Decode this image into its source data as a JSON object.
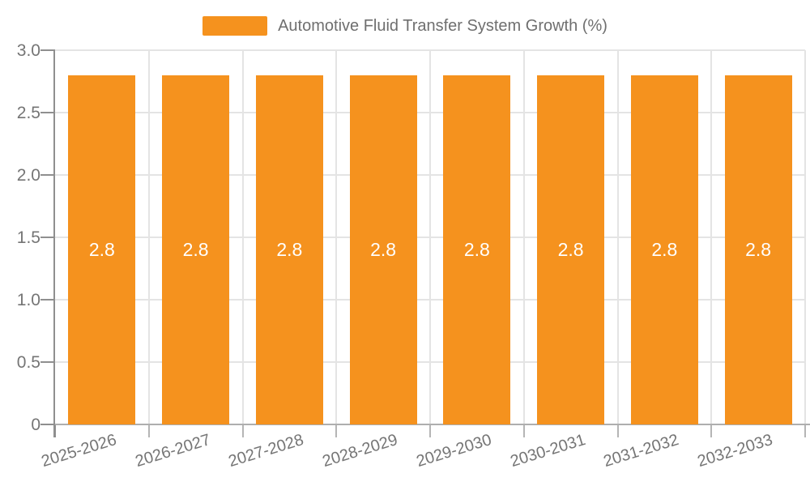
{
  "legend": {
    "label": "Automotive Fluid Transfer System Growth (%)"
  },
  "colors": {
    "bar": "#F5921E",
    "bar_label": "#FFFFFF",
    "axis_text": "#757575",
    "legend_text": "#6F6F6F",
    "grid_line": "#E4E4E4",
    "axis_line": "#8F8F8F",
    "x_axis_line": "#AEAEAE",
    "x_tick": "#B5B5B5"
  },
  "chart_data": {
    "type": "bar",
    "title": "Automotive Fluid Transfer System Growth (%)",
    "categories": [
      "2025-2026",
      "2026-2027",
      "2027-2028",
      "2028-2029",
      "2029-2030",
      "2030-2031",
      "2031-2032",
      "2032-2033"
    ],
    "values": [
      2.8,
      2.8,
      2.8,
      2.8,
      2.8,
      2.8,
      2.8,
      2.8
    ],
    "bar_labels": [
      "2.8",
      "2.8",
      "2.8",
      "2.8",
      "2.8",
      "2.8",
      "2.8",
      "2.8"
    ],
    "xlabel": "",
    "ylabel": "",
    "ylim": [
      0,
      3.0
    ],
    "yticks": [
      {
        "value": 0,
        "label": "0"
      },
      {
        "value": 0.5,
        "label": "0.5"
      },
      {
        "value": 1.0,
        "label": "1.0"
      },
      {
        "value": 1.5,
        "label": "1.5"
      },
      {
        "value": 2.0,
        "label": "2.0"
      },
      {
        "value": 2.5,
        "label": "2.5"
      },
      {
        "value": 3.0,
        "label": "3.0"
      }
    ],
    "grid": true,
    "legend_position": "top-center"
  }
}
